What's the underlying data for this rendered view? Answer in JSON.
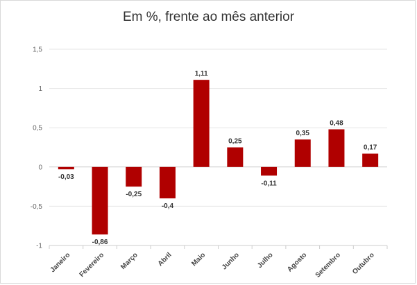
{
  "chart_data": {
    "type": "bar",
    "title": "Em %, frente ao mês anterior",
    "xlabel": "",
    "ylabel": "",
    "categories": [
      "Janeiro",
      "Fevereiro",
      "Março",
      "Abril",
      "Maio",
      "Junho",
      "Julho",
      "Agosto",
      "Setembro",
      "Outubro"
    ],
    "values": [
      -0.03,
      -0.86,
      -0.25,
      -0.4,
      1.11,
      0.25,
      -0.11,
      0.35,
      0.48,
      0.17
    ],
    "value_labels": [
      "-0,03",
      "-0,86",
      "-0,25",
      "-0,4",
      "1,11",
      "0,25",
      "-0,11",
      "0,35",
      "0,48",
      "0,17"
    ],
    "ylim": [
      -1,
      1.5
    ],
    "yticks": [
      -1,
      -0.5,
      0,
      0.5,
      1,
      1.5
    ],
    "ytick_labels": [
      "-1",
      "-0,5",
      "0",
      "0,5",
      "1",
      "1,5"
    ],
    "grid": true,
    "legend": "none",
    "colors": {
      "bar": "#b00000",
      "grid": "#e6e6e6",
      "axis": "#cccccc"
    }
  }
}
